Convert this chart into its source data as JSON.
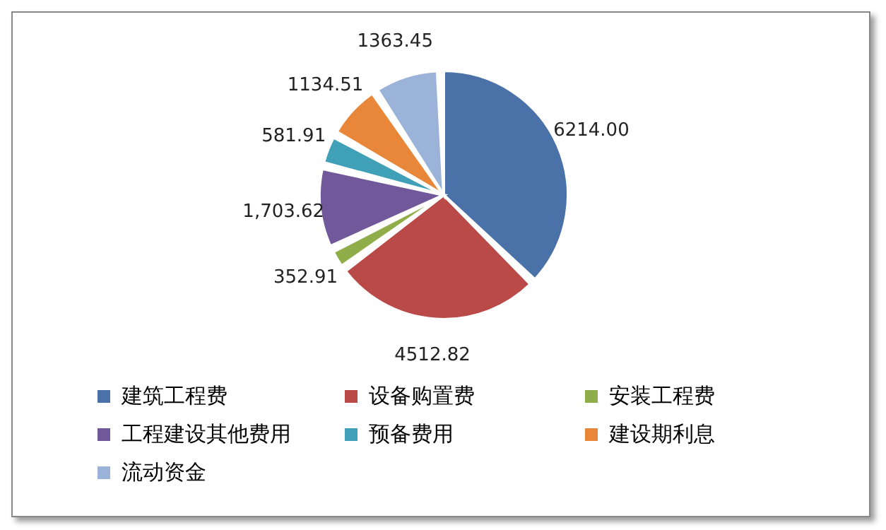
{
  "chart_data": {
    "type": "pie",
    "categories": [
      "建筑工程费",
      "设备购置费",
      "安装工程费",
      "工程建设其他费用",
      "预备费用",
      "建设期利息",
      "流动资金"
    ],
    "values": [
      6214.0,
      4512.82,
      352.91,
      1703.62,
      581.91,
      1134.51,
      1363.45
    ],
    "value_labels": [
      "6214.00",
      "4512.82",
      "352.91",
      "1,703.62",
      "581.91",
      "1134.51",
      "1363.45"
    ],
    "colors": [
      "#4a72a8",
      "#b94a48",
      "#8fae4a",
      "#71589a",
      "#3fa0b8",
      "#e8873a",
      "#9bb3d9"
    ],
    "legend": "bottom"
  }
}
